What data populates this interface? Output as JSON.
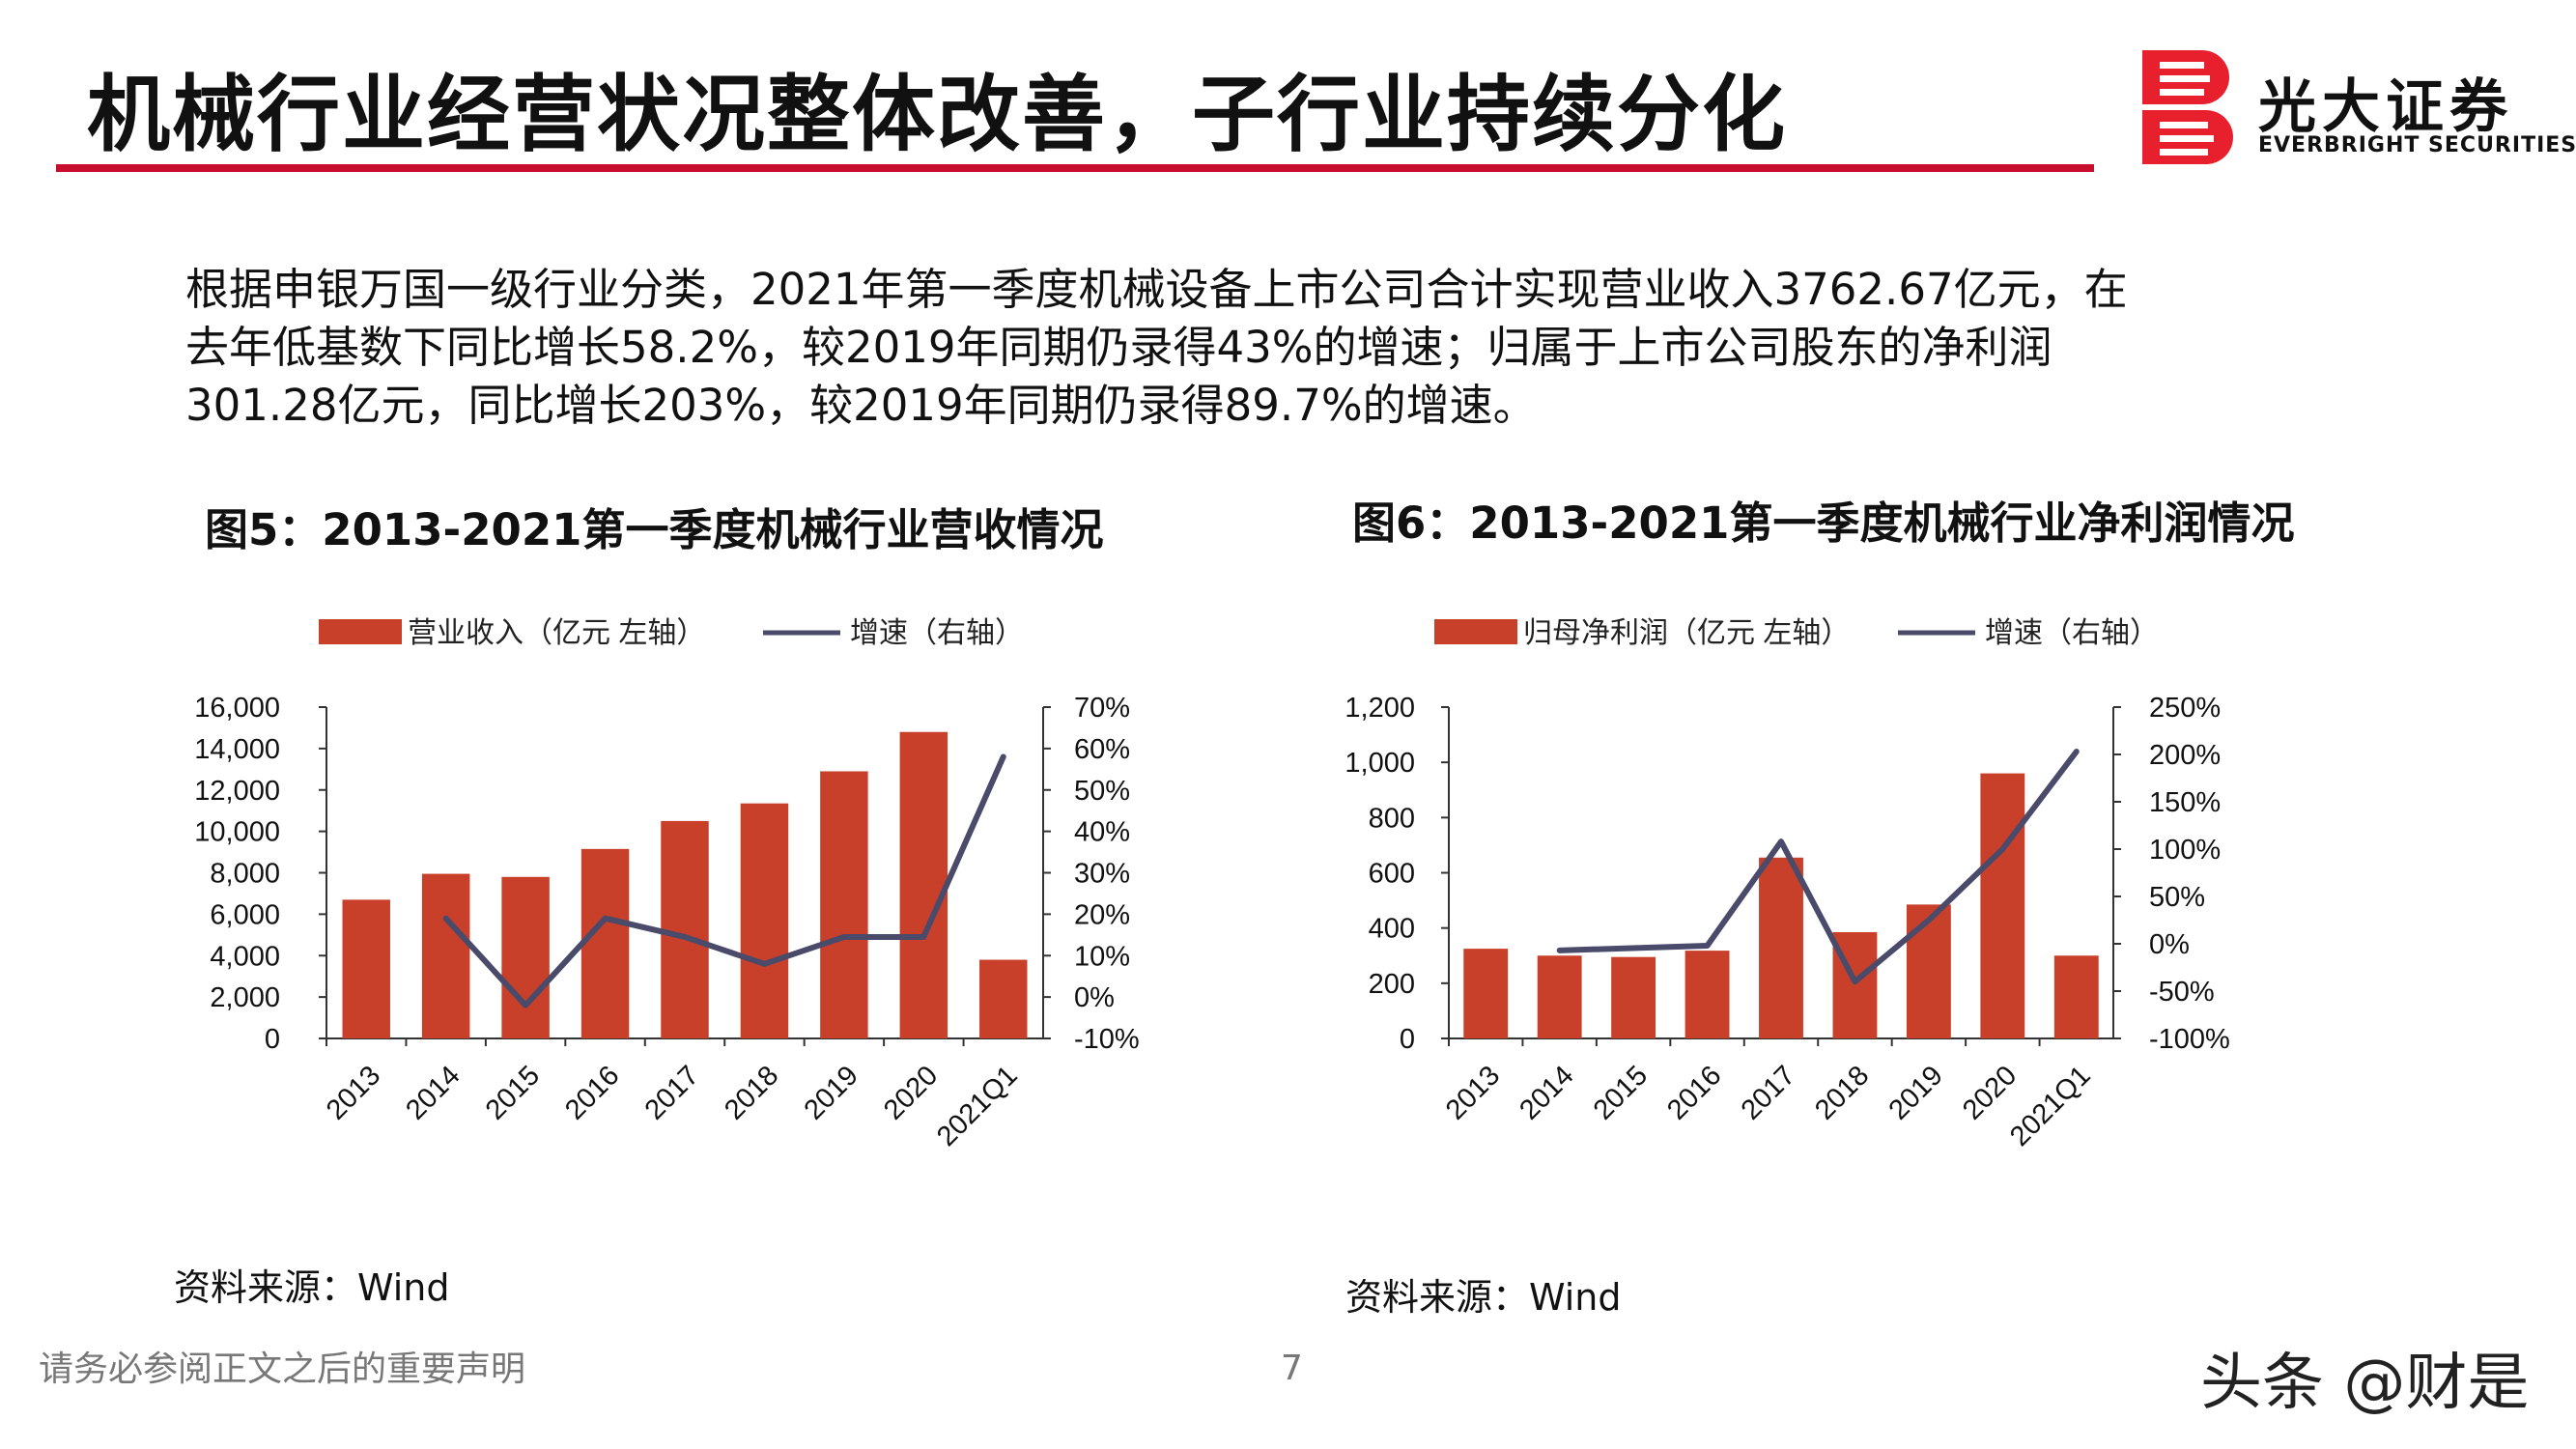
{
  "header": {
    "title": "机械行业经营状况整体改善，子行业持续分化",
    "logo_cn": "光大证券",
    "logo_en": "EVERBRIGHT SECURITIES"
  },
  "intro": [
    "根据申银万国一级行业分类，2021年第一季度机械设备上市公司合计实现营业收入3762.67亿元，在",
    "去年低基数下同比增长58.2%，较2019年同期仍录得43%的增速；归属于上市公司股东的净利润",
    "301.28亿元，同比增长203%，较2019年同期仍录得89.7%的增速。"
  ],
  "colors": {
    "accent": "#c8102e",
    "bar": "#c8402a",
    "line": "#4a4a6a"
  },
  "chart_data": [
    {
      "type": "bar",
      "title": "图5：2013-2021第一季度机械行业营收情况",
      "categories": [
        "2013",
        "2014",
        "2015",
        "2016",
        "2017",
        "2018",
        "2019",
        "2020",
        "2021Q1"
      ],
      "series": [
        {
          "name": "营业收入（亿元 左轴）",
          "type": "bar",
          "axis": "left",
          "values": [
            6700,
            7950,
            7800,
            9150,
            10500,
            11350,
            12900,
            14800,
            3800
          ]
        },
        {
          "name": "增速（右轴）",
          "type": "line",
          "axis": "right",
          "values": [
            null,
            19,
            -2,
            19,
            14.5,
            8,
            14.5,
            14.5,
            58
          ]
        }
      ],
      "y_left": {
        "min": 0,
        "max": 16000,
        "step": 2000,
        "tick_labels": [
          "0",
          "2,000",
          "4,000",
          "6,000",
          "8,000",
          "10,000",
          "12,000",
          "14,000",
          "16,000"
        ]
      },
      "y_right": {
        "min": -10,
        "max": 70,
        "step": 10,
        "tick_labels": [
          "-10%",
          "0%",
          "10%",
          "20%",
          "30%",
          "40%",
          "50%",
          "60%",
          "70%"
        ]
      },
      "source": "资料来源：Wind"
    },
    {
      "type": "bar",
      "title": "图6：2013-2021第一季度机械行业净利润情况",
      "categories": [
        "2013",
        "2014",
        "2015",
        "2016",
        "2017",
        "2018",
        "2019",
        "2020",
        "2021Q1"
      ],
      "series": [
        {
          "name": "归母净利润（亿元 左轴）",
          "type": "bar",
          "axis": "left",
          "values": [
            325,
            300,
            295,
            318,
            655,
            385,
            485,
            960,
            300
          ]
        },
        {
          "name": "增速（右轴）",
          "type": "line",
          "axis": "right",
          "values": [
            null,
            -7,
            null,
            -2,
            108,
            -40,
            25,
            100,
            203
          ]
        }
      ],
      "y_left": {
        "min": 0,
        "max": 1200,
        "step": 200,
        "tick_labels": [
          "0",
          "200",
          "400",
          "600",
          "800",
          "1,000",
          "1,200"
        ]
      },
      "y_right": {
        "min": -100,
        "max": 250,
        "step": 50,
        "tick_labels": [
          "-100%",
          "-50%",
          "0%",
          "50%",
          "100%",
          "150%",
          "200%",
          "250%"
        ]
      },
      "source": "资料来源：Wind"
    }
  ],
  "footer": {
    "disclaimer": "请务必参阅正文之后的重要声明",
    "page": "7",
    "watermark": "头条 @财是"
  }
}
